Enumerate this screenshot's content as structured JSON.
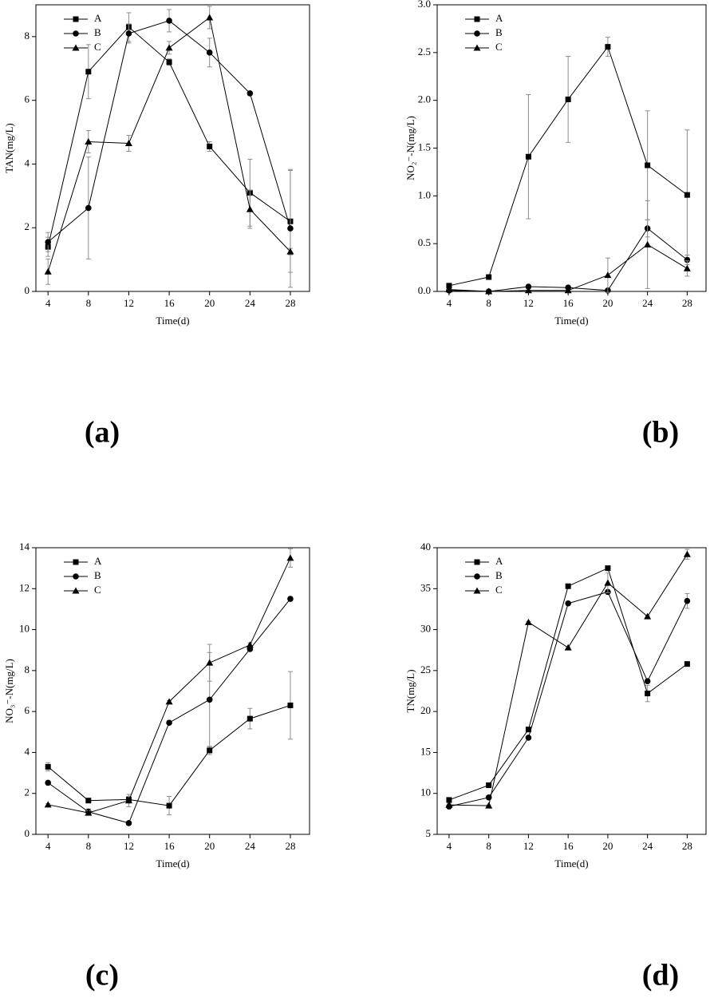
{
  "chart_data": [
    {
      "type": "line",
      "panel_label": "(a)",
      "xlabel": "Time(d)",
      "ylabel": "TAN(mg/L)",
      "x": [
        4,
        8,
        12,
        16,
        20,
        24,
        28
      ],
      "xlim": [
        2.8,
        29.9
      ],
      "xticks": [
        4,
        8,
        12,
        16,
        20,
        24,
        28
      ],
      "ylim": [
        0,
        9
      ],
      "yticks": [
        0,
        2,
        4,
        6,
        8
      ],
      "legend": "upper left",
      "error_color": "#8c8c8c",
      "series": [
        {
          "name": "A",
          "marker": "square",
          "color": "#000000",
          "values": [
            1.4,
            6.9,
            8.3,
            7.2,
            4.55,
            3.1,
            2.2
          ],
          "errors": [
            0.3,
            0.85,
            0.45,
            0.1,
            0.15,
            1.05,
            1.6
          ]
        },
        {
          "name": "B",
          "marker": "circle",
          "color": "#000000",
          "values": [
            1.55,
            2.62,
            8.1,
            8.5,
            7.5,
            6.22,
            1.98
          ],
          "errors": [
            0.3,
            1.6,
            0.3,
            0.35,
            0.45,
            0.05,
            1.85
          ]
        },
        {
          "name": "C",
          "marker": "triangle",
          "color": "#000000",
          "values": [
            0.62,
            4.7,
            4.65,
            7.65,
            8.6,
            2.58,
            1.25
          ],
          "errors": [
            0.4,
            0.35,
            0.25,
            0.2,
            0.35,
            0.6,
            0.1
          ]
        }
      ]
    },
    {
      "type": "line",
      "panel_label": "(b)",
      "xlabel": "Time(d)",
      "ylabel": "NO₂⁻-N(mg/L)",
      "x": [
        4,
        8,
        12,
        16,
        20,
        24,
        28
      ],
      "xlim": [
        2.8,
        29.9
      ],
      "xticks": [
        4,
        8,
        12,
        16,
        20,
        24,
        28
      ],
      "ylim": [
        0,
        3
      ],
      "yticks": [
        {
          "value": 0,
          "label": "0.0"
        },
        0.5,
        {
          "value": 1,
          "label": "1.0"
        },
        1.5,
        {
          "value": 2,
          "label": "2.0"
        },
        2.5,
        {
          "value": 3,
          "label": "3.0"
        }
      ],
      "legend": "upper left",
      "error_color": "#8c8c8c",
      "series": [
        {
          "name": "A",
          "marker": "square",
          "color": "#000000",
          "values": [
            0.06,
            0.15,
            1.41,
            2.01,
            2.56,
            1.32,
            1.01
          ],
          "errors": [
            0.02,
            0.02,
            0.65,
            0.45,
            0.1,
            0.57,
            0.68
          ]
        },
        {
          "name": "B",
          "marker": "circle",
          "color": "#000000",
          "values": [
            0.01,
            0,
            0.05,
            0.04,
            0.01,
            0.66,
            0.33
          ],
          "errors": [
            0,
            0,
            0.01,
            0.01,
            0,
            0.09,
            0.05
          ]
        },
        {
          "name": "C",
          "marker": "triangle",
          "color": "#000000",
          "values": [
            0.02,
            0,
            0.01,
            0.01,
            0.17,
            0.49,
            0.24
          ],
          "errors": [
            0,
            0,
            0,
            0,
            0.18,
            0.46,
            0.08
          ]
        }
      ]
    },
    {
      "type": "line",
      "panel_label": "(c)",
      "xlabel": "Time(d)",
      "ylabel": "NO₃⁻-N(mg/L)",
      "x": [
        4,
        8,
        12,
        16,
        20,
        24,
        28
      ],
      "xlim": [
        2.8,
        29.9
      ],
      "xticks": [
        4,
        8,
        12,
        16,
        20,
        24,
        28
      ],
      "ylim": [
        0,
        14
      ],
      "yticks": [
        0,
        2,
        4,
        6,
        8,
        10,
        12,
        14
      ],
      "legend": "upper left",
      "error_color": "#8c8c8c",
      "series": [
        {
          "name": "A",
          "marker": "square",
          "color": "#000000",
          "values": [
            3.3,
            1.65,
            1.7,
            1.4,
            4.1,
            5.65,
            6.3
          ],
          "errors": [
            0.2,
            0.05,
            0.15,
            0.45,
            0.2,
            0.5,
            1.65
          ]
        },
        {
          "name": "B",
          "marker": "circle",
          "color": "#000000",
          "values": [
            2.52,
            1.1,
            0.55,
            5.45,
            6.58,
            9.05,
            11.5
          ],
          "errors": [
            0.05,
            0.15,
            0.05,
            0.05,
            2.3,
            0.1,
            0.1
          ]
        },
        {
          "name": "C",
          "marker": "triangle",
          "color": "#000000",
          "values": [
            1.45,
            1.05,
            1.65,
            6.48,
            8.38,
            9.25,
            13.5
          ],
          "errors": [
            0.05,
            0.1,
            0.3,
            0.05,
            0.9,
            0.1,
            0.45
          ]
        }
      ]
    },
    {
      "type": "line",
      "panel_label": "(d)",
      "xlabel": "Time(d)",
      "ylabel": "TN(mg/L)",
      "x": [
        4,
        8,
        12,
        16,
        20,
        24,
        28
      ],
      "xlim": [
        2.8,
        29.9
      ],
      "xticks": [
        4,
        8,
        12,
        16,
        20,
        24,
        28
      ],
      "ylim": [
        5,
        40
      ],
      "yticks": [
        5,
        10,
        15,
        20,
        25,
        30,
        35,
        40
      ],
      "legend": "upper left",
      "error_color": "#8c8c8c",
      "series": [
        {
          "name": "A",
          "marker": "square",
          "color": "#000000",
          "values": [
            9.2,
            11,
            17.8,
            35.3,
            37.5,
            22.2,
            25.8
          ],
          "errors": [
            0.2,
            0.1,
            0.2,
            0.2,
            0.1,
            1,
            0.2
          ]
        },
        {
          "name": "B",
          "marker": "circle",
          "color": "#000000",
          "values": [
            8.4,
            9.5,
            16.8,
            33.2,
            34.6,
            23.7,
            33.5
          ],
          "errors": [
            0.2,
            0.2,
            0.2,
            0.2,
            0.2,
            0.2,
            0.9
          ]
        },
        {
          "name": "C",
          "marker": "triangle",
          "color": "#000000",
          "values": [
            8.6,
            8.5,
            30.9,
            27.8,
            35.7,
            31.6,
            39.2
          ],
          "errors": [
            0.2,
            0.1,
            0.1,
            0.1,
            1.2,
            0.1,
            0.6
          ]
        }
      ]
    }
  ]
}
